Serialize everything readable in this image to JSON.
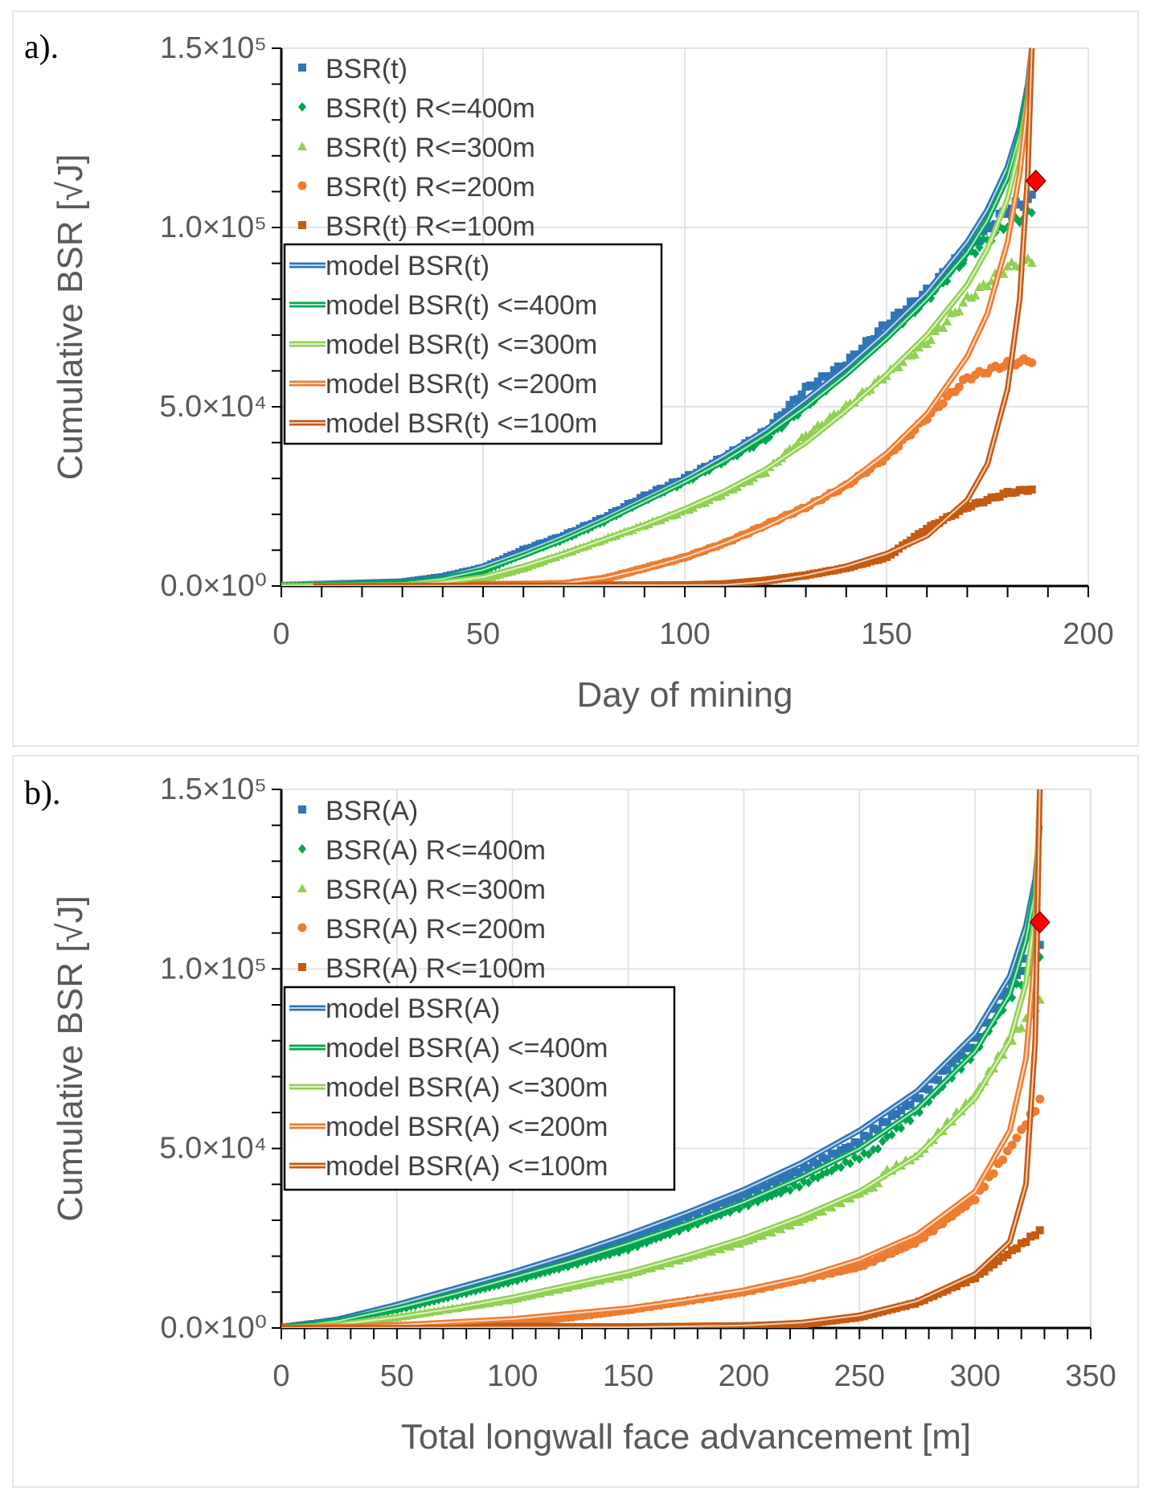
{
  "chart_data": [
    {
      "type": "scatter",
      "panel_label": "a).",
      "xlabel": "Day of mining",
      "ylabel": "Cumulative BSR [√J]",
      "xlim": [
        0,
        200
      ],
      "ylim": [
        0,
        150000
      ],
      "x_ticks": [
        0,
        50,
        100,
        150,
        200
      ],
      "x_tick_labels": [
        "0",
        "50",
        "100",
        "150",
        "200"
      ],
      "y_ticks": [
        0,
        50000,
        100000,
        150000
      ],
      "y_tick_labels": [
        "0.0×10⁰",
        "5.0×10⁴",
        "1.0×10⁵",
        "1.5×10⁵"
      ],
      "grid": true,
      "legend_placement": "top-left",
      "series": [
        {
          "name": "BSR(t)",
          "color": "#2E75B6",
          "marker": "square",
          "x": [
            0,
            30,
            40,
            50,
            60,
            70,
            80,
            90,
            100,
            110,
            120,
            130,
            140,
            150,
            160,
            170,
            180,
            186
          ],
          "y": [
            0,
            1000,
            2500,
            5000,
            10000,
            14000,
            19000,
            25000,
            30000,
            36000,
            43000,
            55000,
            62000,
            73000,
            82000,
            94000,
            105000,
            108000
          ]
        },
        {
          "name": "BSR(t) R<=400m",
          "color": "#00A64F",
          "marker": "diamond",
          "x": [
            0,
            30,
            40,
            50,
            60,
            70,
            80,
            90,
            100,
            110,
            120,
            130,
            140,
            150,
            160,
            170,
            180,
            186
          ],
          "y": [
            0,
            800,
            2000,
            4000,
            9000,
            13000,
            18000,
            24000,
            29000,
            35000,
            41000,
            50000,
            60000,
            70000,
            80000,
            92000,
            101000,
            104000
          ]
        },
        {
          "name": "BSR(t) R<=300m",
          "color": "#92D050",
          "marker": "triangle",
          "x": [
            0,
            30,
            40,
            50,
            60,
            70,
            80,
            90,
            100,
            110,
            120,
            130,
            140,
            150,
            160,
            170,
            180,
            186
          ],
          "y": [
            0,
            300,
            1000,
            2000,
            5000,
            9000,
            13000,
            17000,
            21000,
            26000,
            32000,
            42000,
            50000,
            59000,
            68000,
            80000,
            89000,
            91000
          ]
        },
        {
          "name": "BSR(t) R<=200m",
          "color": "#ED7D31",
          "marker": "circle",
          "x": [
            8,
            40,
            60,
            70,
            80,
            90,
            100,
            110,
            120,
            130,
            140,
            150,
            160,
            170,
            180,
            186
          ],
          "y": [
            0,
            100,
            300,
            500,
            2000,
            5000,
            8000,
            12000,
            17000,
            22000,
            28000,
            36000,
            47000,
            58000,
            62000,
            63000
          ]
        },
        {
          "name": "BSR(t) R<=100m",
          "color": "#C55A11",
          "marker": "square",
          "x": [
            8,
            60,
            100,
            110,
            120,
            130,
            140,
            150,
            160,
            170,
            180,
            186
          ],
          "y": [
            0,
            100,
            200,
            500,
            1500,
            3000,
            5000,
            8000,
            16000,
            22000,
            26000,
            27000
          ]
        }
      ],
      "models": [
        {
          "name": "model BSR(t)",
          "color": "#2E75B6",
          "x": [
            0,
            30,
            40,
            50,
            60,
            70,
            80,
            90,
            100,
            110,
            120,
            130,
            140,
            150,
            160,
            170,
            175,
            180,
            183,
            185,
            186
          ],
          "y": [
            0,
            1000,
            2500,
            5500,
            9500,
            14000,
            19000,
            24500,
            30000,
            36500,
            43500,
            52000,
            61000,
            71000,
            82000,
            96000,
            105000,
            117000,
            128000,
            140000,
            150000
          ]
        },
        {
          "name": "model BSR(t) <=400m",
          "color": "#00A64F",
          "x": [
            0,
            30,
            40,
            50,
            60,
            70,
            80,
            90,
            100,
            110,
            120,
            130,
            140,
            150,
            160,
            170,
            175,
            180,
            183,
            185,
            186
          ],
          "y": [
            0,
            800,
            2000,
            4500,
            8500,
            13000,
            18000,
            23500,
            29000,
            35000,
            42000,
            50000,
            59000,
            69000,
            80000,
            93000,
            102000,
            114000,
            126000,
            138000,
            150000
          ]
        },
        {
          "name": "model BSR(t) <=300m",
          "color": "#92D050",
          "x": [
            0,
            30,
            40,
            50,
            60,
            70,
            80,
            90,
            100,
            110,
            120,
            130,
            140,
            150,
            160,
            170,
            175,
            180,
            183,
            185,
            186
          ],
          "y": [
            0,
            300,
            1000,
            2500,
            5500,
            9000,
            13000,
            17000,
            21500,
            26500,
            32500,
            40000,
            49000,
            59000,
            70000,
            84000,
            94000,
            108000,
            122000,
            136000,
            150000
          ]
        },
        {
          "name": "model BSR(t) <=200m",
          "color": "#ED7D31",
          "x": [
            8,
            60,
            70,
            80,
            90,
            100,
            110,
            120,
            130,
            140,
            150,
            160,
            170,
            175,
            180,
            183,
            185,
            186
          ],
          "y": [
            0,
            300,
            800,
            2200,
            4800,
            8000,
            12000,
            16500,
            22000,
            28500,
            37000,
            48000,
            64000,
            76000,
            96000,
            115000,
            135000,
            150000
          ]
        },
        {
          "name": "model BSR(t) <=100m",
          "color": "#C55A11",
          "x": [
            8,
            110,
            120,
            130,
            140,
            150,
            160,
            170,
            175,
            180,
            183,
            185,
            186
          ],
          "y": [
            0,
            300,
            1200,
            3000,
            5500,
            9000,
            14000,
            24000,
            34000,
            55000,
            80000,
            115000,
            150000
          ]
        }
      ],
      "annotations": [
        {
          "type": "red-diamond",
          "x": 187,
          "y": 113000,
          "color": "#FF0000"
        }
      ]
    },
    {
      "type": "scatter",
      "panel_label": "b).",
      "xlabel": "Total longwall face advancement [m]",
      "ylabel": "Cumulative BSR [√J]",
      "xlim": [
        0,
        350
      ],
      "ylim": [
        0,
        150000
      ],
      "x_ticks": [
        0,
        50,
        100,
        150,
        200,
        250,
        300,
        350
      ],
      "x_tick_labels": [
        "0",
        "50",
        "100",
        "150",
        "200",
        "250",
        "300",
        "350"
      ],
      "y_ticks": [
        0,
        50000,
        100000,
        150000
      ],
      "y_tick_labels": [
        "0.0×10⁰",
        "5.0×10⁴",
        "1.0×10⁵",
        "1.5×10⁵"
      ],
      "grid": true,
      "legend_placement": "top-left",
      "series": [
        {
          "name": "BSR(A)",
          "color": "#2E75B6",
          "marker": "square",
          "x": [
            0,
            25,
            50,
            75,
            100,
            125,
            150,
            175,
            200,
            225,
            250,
            275,
            300,
            315,
            328
          ],
          "y": [
            0,
            2000,
            6000,
            10000,
            14000,
            19000,
            25000,
            31000,
            37000,
            44000,
            52000,
            64000,
            80000,
            95000,
            108000
          ]
        },
        {
          "name": "BSR(A) R<=400m",
          "color": "#00A64F",
          "marker": "diamond",
          "x": [
            0,
            25,
            50,
            75,
            100,
            125,
            150,
            175,
            200,
            225,
            258,
            260,
            275,
            300,
            315,
            328
          ],
          "y": [
            0,
            1800,
            5000,
            9000,
            13000,
            17500,
            22000,
            28000,
            34000,
            40000,
            50000,
            52000,
            60000,
            77000,
            92000,
            104000
          ]
        },
        {
          "name": "BSR(A) R<=300m",
          "color": "#92D050",
          "marker": "triangle",
          "x": [
            0,
            25,
            50,
            75,
            100,
            125,
            150,
            175,
            200,
            225,
            258,
            260,
            275,
            300,
            315,
            328
          ],
          "y": [
            0,
            800,
            3000,
            5500,
            8000,
            11500,
            15000,
            19500,
            24000,
            30000,
            40000,
            43000,
            48000,
            65000,
            80000,
            91000
          ]
        },
        {
          "name": "BSR(A) R<=200m",
          "color": "#ED7D31",
          "marker": "circle",
          "x": [
            0,
            50,
            100,
            125,
            150,
            175,
            200,
            225,
            250,
            275,
            300,
            315,
            328
          ],
          "y": [
            0,
            500,
            1500,
            3000,
            5000,
            7500,
            10000,
            13500,
            17000,
            24000,
            36000,
            50000,
            63000
          ]
        },
        {
          "name": "BSR(A) R<=100m",
          "color": "#C55A11",
          "marker": "square",
          "x": [
            0,
            100,
            150,
            200,
            225,
            250,
            275,
            300,
            315,
            328
          ],
          "y": [
            0,
            300,
            200,
            500,
            1000,
            3000,
            7000,
            14000,
            21000,
            27000
          ]
        }
      ],
      "models": [
        {
          "name": "model BSR(A)",
          "color": "#2E75B6",
          "x": [
            0,
            25,
            50,
            75,
            100,
            125,
            150,
            175,
            200,
            225,
            250,
            275,
            300,
            315,
            322,
            326,
            328
          ],
          "y": [
            0,
            2500,
            6500,
            11000,
            15500,
            20500,
            26000,
            32000,
            38500,
            46000,
            55000,
            66000,
            82000,
            98000,
            112000,
            125000,
            140000
          ]
        },
        {
          "name": "model BSR(A) <=400m",
          "color": "#00A64F",
          "x": [
            0,
            25,
            50,
            75,
            100,
            125,
            150,
            175,
            200,
            225,
            250,
            275,
            300,
            315,
            322,
            326,
            328
          ],
          "y": [
            0,
            2000,
            5500,
            9500,
            14000,
            18500,
            23500,
            29000,
            35000,
            42000,
            50000,
            61000,
            77000,
            93000,
            108000,
            122000,
            140000
          ]
        },
        {
          "name": "model BSR(A) <=300m",
          "color": "#92D050",
          "x": [
            0,
            25,
            50,
            75,
            100,
            125,
            150,
            175,
            200,
            225,
            250,
            275,
            300,
            315,
            322,
            326,
            328
          ],
          "y": [
            0,
            1000,
            3000,
            5500,
            8500,
            12000,
            15500,
            20000,
            25000,
            31000,
            38000,
            48000,
            64000,
            80000,
            96000,
            115000,
            150000
          ]
        },
        {
          "name": "model BSR(A) <=200m",
          "color": "#ED7D31",
          "x": [
            0,
            50,
            100,
            125,
            150,
            175,
            200,
            225,
            250,
            275,
            300,
            315,
            322,
            326,
            328
          ],
          "y": [
            0,
            800,
            2500,
            4000,
            5500,
            7800,
            10500,
            14000,
            19000,
            26000,
            38000,
            55000,
            75000,
            105000,
            150000
          ]
        },
        {
          "name": "model BSR(A) <=100m",
          "color": "#C55A11",
          "x": [
            0,
            150,
            200,
            225,
            250,
            275,
            300,
            315,
            322,
            326,
            328
          ],
          "y": [
            0,
            200,
            700,
            1500,
            3500,
            7500,
            15000,
            24000,
            40000,
            80000,
            150000
          ]
        }
      ],
      "annotations": [
        {
          "type": "red-diamond",
          "x": 328,
          "y": 113000,
          "color": "#FF0000"
        }
      ]
    }
  ]
}
